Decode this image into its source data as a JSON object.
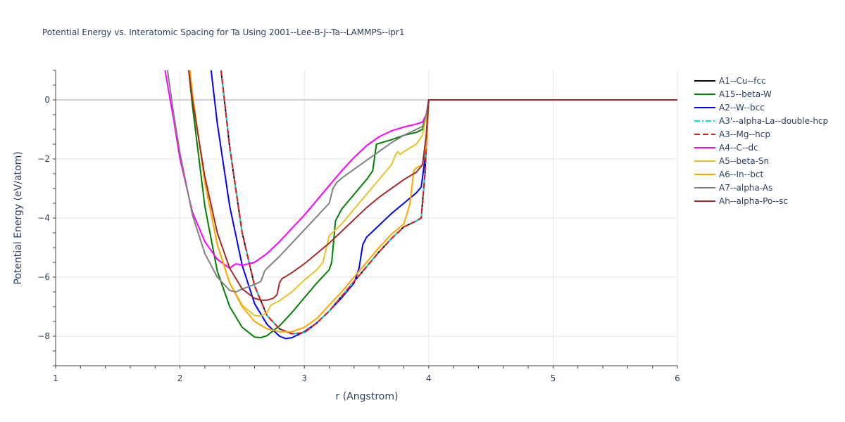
{
  "chart_data": {
    "type": "line",
    "title": "Potential Energy vs. Interatomic Spacing for Ta Using 2001--Lee-B-J--Ta--LAMMPS--ipr1",
    "xlabel": "r (Angstrom)",
    "ylabel": "Potential Energy (eV/atom)",
    "xlim": [
      1,
      6
    ],
    "ylim": [
      -9,
      1
    ],
    "xticks": [
      1,
      2,
      3,
      4,
      5,
      6
    ],
    "yticks": [
      -8,
      -6,
      -4,
      -2,
      0
    ],
    "grid": true,
    "legend_position": "right",
    "series": [
      {
        "name": "A1--Cu--fcc",
        "color": "#000000",
        "dash": "solid",
        "x": [
          2.33,
          2.4,
          2.5,
          2.6,
          2.7,
          2.8,
          2.9,
          3.0,
          3.1,
          3.2,
          3.3,
          3.4,
          3.5,
          3.6,
          3.7,
          3.8,
          3.9,
          3.94,
          3.97,
          4.0,
          4.5,
          5.0,
          5.5,
          6.0
        ],
        "y": [
          1.0,
          -1.6,
          -4.5,
          -6.3,
          -7.3,
          -7.75,
          -7.92,
          -7.88,
          -7.55,
          -7.15,
          -6.65,
          -6.15,
          -5.65,
          -5.15,
          -4.7,
          -4.3,
          -4.1,
          -4.0,
          -2.5,
          0,
          0,
          0,
          0,
          0
        ]
      },
      {
        "name": "A15--beta-W",
        "color": "#008000",
        "dash": "solid",
        "x": [
          2.07,
          2.1,
          2.2,
          2.3,
          2.4,
          2.5,
          2.6,
          2.65,
          2.7,
          2.8,
          2.9,
          3.0,
          3.1,
          3.2,
          3.22,
          3.25,
          3.3,
          3.4,
          3.5,
          3.55,
          3.58,
          3.7,
          3.8,
          3.9,
          3.95,
          3.98,
          4.0,
          4.5,
          5.0,
          5.5,
          6.0
        ],
        "y": [
          1.0,
          -0.2,
          -3.6,
          -5.8,
          -7.0,
          -7.7,
          -8.03,
          -8.05,
          -7.98,
          -7.65,
          -7.2,
          -6.7,
          -6.2,
          -5.75,
          -5.5,
          -4.1,
          -3.7,
          -3.2,
          -2.7,
          -2.4,
          -1.5,
          -1.35,
          -1.2,
          -1.1,
          -1.0,
          -0.6,
          0,
          0,
          0,
          0,
          0
        ]
      },
      {
        "name": "A2--W--bcc",
        "color": "#0000ff",
        "dash": "solid",
        "x": [
          2.25,
          2.3,
          2.4,
          2.5,
          2.6,
          2.7,
          2.8,
          2.85,
          2.9,
          3.0,
          3.1,
          3.2,
          3.3,
          3.4,
          3.44,
          3.47,
          3.5,
          3.6,
          3.7,
          3.8,
          3.9,
          3.94,
          3.97,
          4.0,
          4.5,
          5.0,
          5.5,
          6.0
        ],
        "y": [
          1.0,
          -0.8,
          -3.6,
          -5.6,
          -6.9,
          -7.6,
          -8.0,
          -8.08,
          -8.05,
          -7.85,
          -7.55,
          -7.15,
          -6.7,
          -6.2,
          -5.7,
          -4.9,
          -4.65,
          -4.25,
          -3.85,
          -3.5,
          -3.15,
          -2.95,
          -2.0,
          0,
          0,
          0,
          0,
          0
        ]
      },
      {
        "name": "A3'--alpha-La--double-hcp",
        "color": "#00e5e5",
        "dash": "dashdot",
        "x": [
          2.33,
          2.4,
          2.5,
          2.6,
          2.7,
          2.8,
          2.9,
          3.0,
          3.1,
          3.2,
          3.3,
          3.4,
          3.5,
          3.6,
          3.7,
          3.8,
          3.9,
          3.94,
          3.97,
          4.0,
          4.5,
          5.0,
          5.5,
          6.0
        ],
        "y": [
          1.0,
          -1.6,
          -4.5,
          -6.3,
          -7.3,
          -7.75,
          -7.92,
          -7.88,
          -7.55,
          -7.15,
          -6.65,
          -6.15,
          -5.65,
          -5.15,
          -4.7,
          -4.3,
          -4.1,
          -4.0,
          -2.5,
          0,
          0,
          0,
          0,
          0
        ]
      },
      {
        "name": "A3--Mg--hcp",
        "color": "#e41a1c",
        "dash": "dash",
        "x": [
          2.33,
          2.4,
          2.5,
          2.6,
          2.7,
          2.8,
          2.9,
          3.0,
          3.1,
          3.2,
          3.3,
          3.4,
          3.5,
          3.6,
          3.7,
          3.8,
          3.9,
          3.94,
          3.97,
          4.0,
          4.5,
          5.0,
          5.5,
          6.0
        ],
        "y": [
          1.0,
          -1.6,
          -4.5,
          -6.3,
          -7.3,
          -7.75,
          -7.92,
          -7.88,
          -7.55,
          -7.15,
          -6.65,
          -6.15,
          -5.65,
          -5.15,
          -4.7,
          -4.3,
          -4.1,
          -4.0,
          -2.5,
          0,
          0,
          0,
          0,
          0
        ]
      },
      {
        "name": "A4--C--dc",
        "color": "#ff00ff",
        "dash": "solid",
        "x": [
          1.88,
          1.95,
          2.0,
          2.1,
          2.2,
          2.3,
          2.4,
          2.43,
          2.45,
          2.5,
          2.6,
          2.7,
          2.8,
          2.9,
          3.0,
          3.1,
          3.2,
          3.3,
          3.4,
          3.5,
          3.6,
          3.7,
          3.8,
          3.9,
          3.95,
          3.98,
          4.0,
          4.5,
          5.0,
          5.5,
          6.0
        ],
        "y": [
          1.0,
          -0.7,
          -2.0,
          -3.8,
          -4.8,
          -5.4,
          -5.7,
          -5.6,
          -5.55,
          -5.6,
          -5.5,
          -5.2,
          -4.8,
          -4.35,
          -3.9,
          -3.4,
          -2.9,
          -2.4,
          -1.95,
          -1.55,
          -1.25,
          -1.05,
          -0.92,
          -0.82,
          -0.75,
          -0.5,
          0,
          0,
          0,
          0,
          0
        ]
      },
      {
        "name": "A5--beta-Sn",
        "color": "#e6c229",
        "dash": "solid",
        "x": [
          2.08,
          2.1,
          2.2,
          2.3,
          2.4,
          2.5,
          2.6,
          2.65,
          2.7,
          2.73,
          2.8,
          2.9,
          3.0,
          3.1,
          3.15,
          3.2,
          3.3,
          3.4,
          3.5,
          3.6,
          3.7,
          3.73,
          3.75,
          3.77,
          3.8,
          3.9,
          3.95,
          3.98,
          4.0,
          4.5,
          5.0,
          5.5,
          6.0
        ],
        "y": [
          1.0,
          0.2,
          -2.8,
          -4.9,
          -6.2,
          -6.95,
          -7.3,
          -7.32,
          -7.2,
          -6.95,
          -6.8,
          -6.5,
          -6.1,
          -5.75,
          -5.5,
          -4.6,
          -4.2,
          -3.7,
          -3.2,
          -2.7,
          -2.2,
          -1.9,
          -1.75,
          -1.85,
          -1.75,
          -1.5,
          -1.2,
          -0.6,
          0,
          0,
          0,
          0,
          0
        ]
      },
      {
        "name": "A6--In--bct",
        "color": "#ffa500",
        "dash": "solid",
        "x": [
          2.08,
          2.1,
          2.2,
          2.3,
          2.4,
          2.5,
          2.6,
          2.7,
          2.8,
          2.9,
          3.0,
          3.1,
          3.2,
          3.3,
          3.4,
          3.5,
          3.6,
          3.7,
          3.8,
          3.85,
          3.88,
          3.9,
          3.95,
          3.98,
          4.0,
          4.5,
          5.0,
          5.5,
          6.0
        ],
        "y": [
          1.0,
          0.2,
          -2.8,
          -4.9,
          -6.2,
          -7.0,
          -7.5,
          -7.75,
          -7.85,
          -7.85,
          -7.7,
          -7.4,
          -6.95,
          -6.5,
          -6.0,
          -5.5,
          -5.0,
          -4.55,
          -4.2,
          -3.5,
          -2.4,
          -2.3,
          -2.2,
          -1.5,
          0,
          0,
          0,
          0,
          0
        ]
      },
      {
        "name": "A7--alpha-As",
        "color": "#808080",
        "dash": "solid",
        "x": [
          1.9,
          1.95,
          2.0,
          2.1,
          2.2,
          2.3,
          2.4,
          2.45,
          2.5,
          2.6,
          2.65,
          2.68,
          2.7,
          2.8,
          2.9,
          3.0,
          3.1,
          3.2,
          3.23,
          3.26,
          3.3,
          3.4,
          3.5,
          3.6,
          3.7,
          3.8,
          3.9,
          3.95,
          3.98,
          4.0,
          4.5,
          5.0,
          5.5,
          6.0
        ],
        "y": [
          1.0,
          -0.5,
          -1.8,
          -3.9,
          -5.2,
          -6.0,
          -6.45,
          -6.5,
          -6.4,
          -6.25,
          -6.15,
          -5.8,
          -5.7,
          -5.3,
          -4.85,
          -4.4,
          -3.95,
          -3.5,
          -3.0,
          -2.8,
          -2.65,
          -2.35,
          -2.05,
          -1.75,
          -1.45,
          -1.2,
          -1.0,
          -0.9,
          -0.5,
          0,
          0,
          0,
          0,
          0
        ]
      },
      {
        "name": "Ah--alpha-Po--sc",
        "color": "#a52a2a",
        "dash": "solid",
        "x": [
          2.07,
          2.1,
          2.2,
          2.3,
          2.4,
          2.5,
          2.6,
          2.65,
          2.7,
          2.75,
          2.78,
          2.8,
          2.82,
          2.85,
          2.9,
          3.0,
          3.1,
          3.2,
          3.3,
          3.4,
          3.5,
          3.6,
          3.7,
          3.8,
          3.9,
          3.95,
          3.98,
          4.0,
          4.5,
          5.0,
          5.5,
          6.0
        ],
        "y": [
          1.0,
          0.0,
          -2.6,
          -4.5,
          -5.7,
          -6.4,
          -6.72,
          -6.78,
          -6.78,
          -6.72,
          -6.6,
          -6.2,
          -6.05,
          -5.98,
          -5.85,
          -5.55,
          -5.2,
          -4.85,
          -4.45,
          -4.05,
          -3.65,
          -3.3,
          -3.0,
          -2.7,
          -2.45,
          -2.2,
          -1.2,
          0,
          0,
          0,
          0,
          0
        ]
      }
    ]
  }
}
